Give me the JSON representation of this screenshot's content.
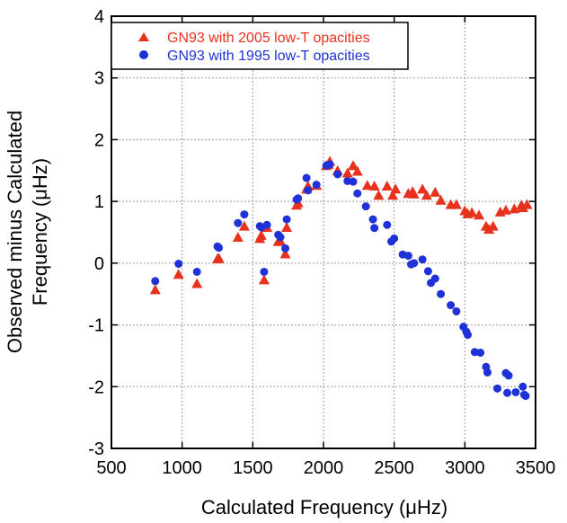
{
  "chart_data": {
    "type": "scatter",
    "xlabel": "Calculated Frequency (μHz)",
    "ylabel_lines": [
      "Observed minus Calculated",
      "Frequency (μHz)"
    ],
    "xlim": [
      500,
      3500
    ],
    "ylim": [
      -3,
      4
    ],
    "xticks": [
      500,
      1000,
      1500,
      2000,
      2500,
      3000,
      3500
    ],
    "yticks": [
      -3,
      -2,
      -1,
      0,
      1,
      2,
      3,
      4
    ],
    "grid": true,
    "legend_position": "top-left",
    "series": [
      {
        "name": "GN93 with 2005 low-T opacities",
        "marker": "triangle",
        "color": "#e8321e",
        "points": [
          [
            810,
            -0.43
          ],
          [
            975,
            -0.18
          ],
          [
            1105,
            -0.33
          ],
          [
            1250,
            0.07
          ],
          [
            1260,
            0.08
          ],
          [
            1395,
            0.42
          ],
          [
            1440,
            0.6
          ],
          [
            1550,
            0.4
          ],
          [
            1560,
            0.45
          ],
          [
            1580,
            -0.27
          ],
          [
            1600,
            0.58
          ],
          [
            1680,
            0.35
          ],
          [
            1695,
            0.36
          ],
          [
            1730,
            0.15
          ],
          [
            1740,
            0.58
          ],
          [
            1810,
            0.94
          ],
          [
            1820,
            0.98
          ],
          [
            1880,
            1.2
          ],
          [
            1890,
            1.25
          ],
          [
            1950,
            1.26
          ],
          [
            2020,
            1.58
          ],
          [
            2035,
            1.6
          ],
          [
            2045,
            1.65
          ],
          [
            2100,
            1.5
          ],
          [
            2170,
            1.46
          ],
          [
            2210,
            1.58
          ],
          [
            2240,
            1.49
          ],
          [
            2310,
            1.26
          ],
          [
            2360,
            1.25
          ],
          [
            2390,
            1.1
          ],
          [
            2450,
            1.25
          ],
          [
            2490,
            1.1
          ],
          [
            2510,
            1.2
          ],
          [
            2600,
            1.13
          ],
          [
            2630,
            1.16
          ],
          [
            2640,
            1.12
          ],
          [
            2700,
            1.2
          ],
          [
            2730,
            1.1
          ],
          [
            2790,
            1.15
          ],
          [
            2830,
            1.02
          ],
          [
            2900,
            0.95
          ],
          [
            2940,
            0.95
          ],
          [
            3000,
            0.85
          ],
          [
            3020,
            0.8
          ],
          [
            3050,
            0.82
          ],
          [
            3100,
            0.78
          ],
          [
            3150,
            0.6
          ],
          [
            3170,
            0.55
          ],
          [
            3200,
            0.6
          ],
          [
            3250,
            0.83
          ],
          [
            3290,
            0.86
          ],
          [
            3350,
            0.88
          ],
          [
            3400,
            0.94
          ],
          [
            3410,
            0.9
          ],
          [
            3440,
            0.95
          ]
        ]
      },
      {
        "name": "GN93 with 1995 low-T opacities",
        "marker": "circle",
        "color": "#1f32d8",
        "points": [
          [
            810,
            -0.29
          ],
          [
            975,
            -0.01
          ],
          [
            1105,
            -0.14
          ],
          [
            1250,
            0.27
          ],
          [
            1260,
            0.25
          ],
          [
            1395,
            0.65
          ],
          [
            1440,
            0.79
          ],
          [
            1550,
            0.6
          ],
          [
            1560,
            0.58
          ],
          [
            1580,
            -0.14
          ],
          [
            1600,
            0.62
          ],
          [
            1680,
            0.46
          ],
          [
            1695,
            0.42
          ],
          [
            1730,
            0.24
          ],
          [
            1740,
            0.71
          ],
          [
            1810,
            1.03
          ],
          [
            1820,
            1.05
          ],
          [
            1880,
            1.38
          ],
          [
            1890,
            1.18
          ],
          [
            1950,
            1.27
          ],
          [
            2020,
            1.58
          ],
          [
            2045,
            1.6
          ],
          [
            2100,
            1.44
          ],
          [
            2170,
            1.33
          ],
          [
            2210,
            1.32
          ],
          [
            2240,
            1.13
          ],
          [
            2300,
            0.92
          ],
          [
            2350,
            0.71
          ],
          [
            2360,
            0.57
          ],
          [
            2450,
            0.62
          ],
          [
            2480,
            0.35
          ],
          [
            2500,
            0.4
          ],
          [
            2560,
            0.14
          ],
          [
            2600,
            0.12
          ],
          [
            2620,
            -0.02
          ],
          [
            2640,
            0.0
          ],
          [
            2700,
            0.06
          ],
          [
            2740,
            -0.13
          ],
          [
            2760,
            -0.32
          ],
          [
            2790,
            -0.25
          ],
          [
            2830,
            -0.5
          ],
          [
            2900,
            -0.68
          ],
          [
            2940,
            -0.78
          ],
          [
            2990,
            -1.03
          ],
          [
            3010,
            -1.11
          ],
          [
            3020,
            -1.16
          ],
          [
            3070,
            -1.44
          ],
          [
            3110,
            -1.45
          ],
          [
            3150,
            -1.68
          ],
          [
            3160,
            -1.77
          ],
          [
            3230,
            -2.03
          ],
          [
            3290,
            -1.78
          ],
          [
            3300,
            -2.1
          ],
          [
            3310,
            -1.82
          ],
          [
            3360,
            -2.09
          ],
          [
            3410,
            -2.0
          ],
          [
            3420,
            -2.13
          ],
          [
            3430,
            -2.15
          ]
        ]
      }
    ]
  }
}
